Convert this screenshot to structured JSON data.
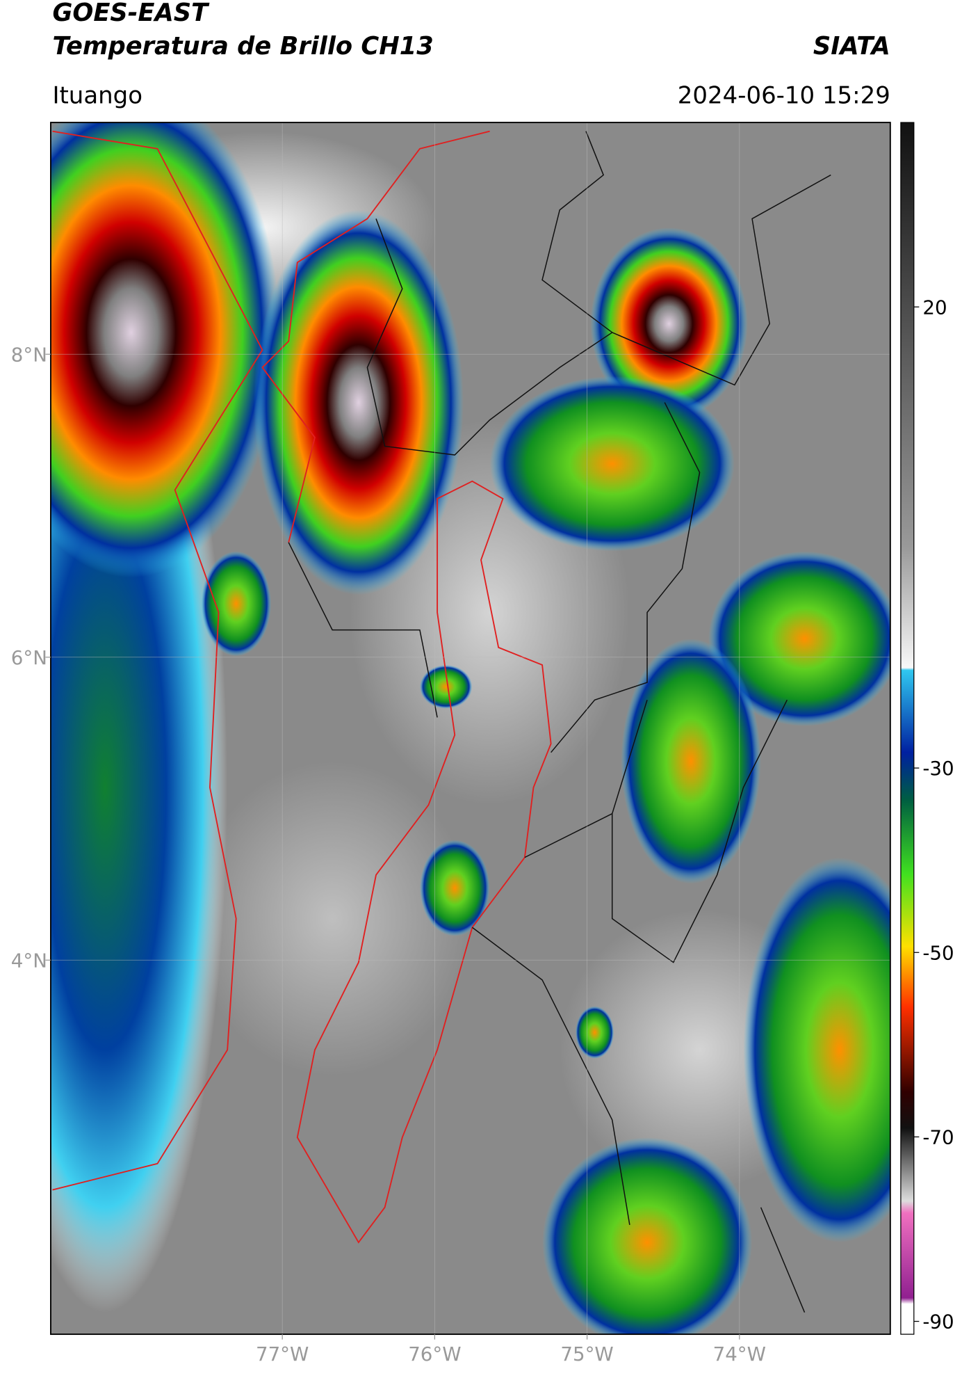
{
  "header": {
    "title_line1": "GOES-EAST",
    "title_line2": "Temperatura de Brillo CH13",
    "org": "SIATA",
    "location": "Ituango",
    "timestamp": "2024-06-10 15:29"
  },
  "map": {
    "lon_range": [
      -78.52,
      -73.01
    ],
    "lat_range": [
      1.53,
      9.53
    ],
    "lon_ticks": [
      {
        "value": -77,
        "label": "77°W"
      },
      {
        "value": -76,
        "label": "76°W"
      },
      {
        "value": -75,
        "label": "75°W"
      },
      {
        "value": -74,
        "label": "74°W"
      }
    ],
    "lat_ticks": [
      {
        "value": 8,
        "label": "8°N"
      },
      {
        "value": 6,
        "label": "6°N"
      },
      {
        "value": 4,
        "label": "4°N"
      }
    ],
    "colorbar": {
      "range": [
        -91.4,
        40
      ],
      "ticks": [
        20,
        -30,
        -50,
        -70,
        -90
      ]
    }
  }
}
